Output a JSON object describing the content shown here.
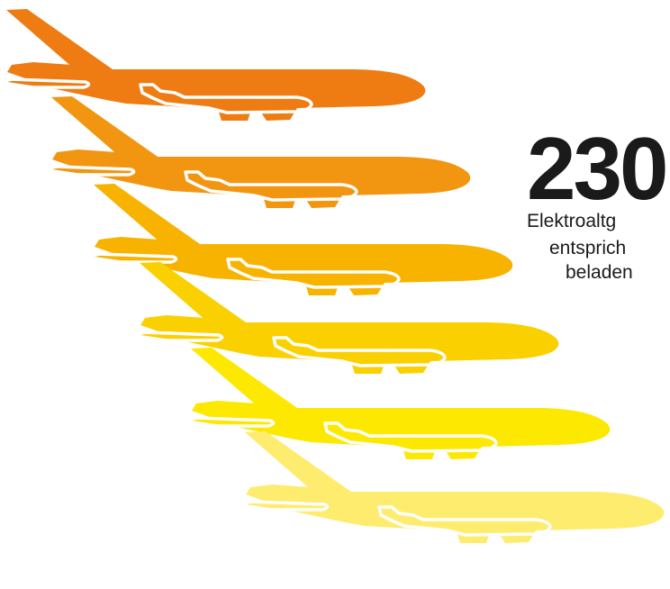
{
  "headline": {
    "number": "230"
  },
  "caption_lines": [
    "Elektroaltg",
    "entsprich",
    "beladen"
  ],
  "planes": [
    {
      "name": "plane-1",
      "color": "#EE7C13"
    },
    {
      "name": "plane-2",
      "color": "#F29612"
    },
    {
      "name": "plane-3",
      "color": "#F7B300"
    },
    {
      "name": "plane-4",
      "color": "#FAD000"
    },
    {
      "name": "plane-5",
      "color": "#FCE800"
    },
    {
      "name": "plane-6",
      "color": "#FEEC6E"
    }
  ]
}
